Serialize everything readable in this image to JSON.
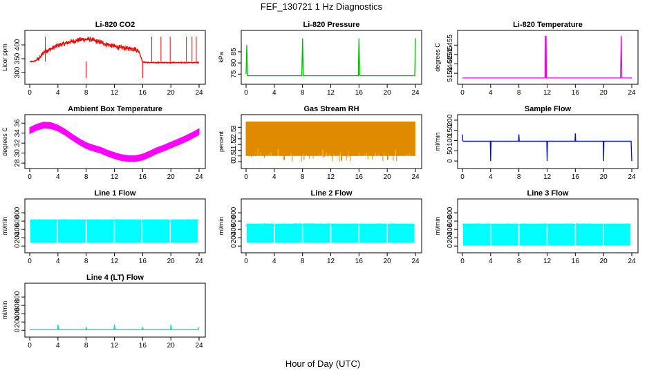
{
  "figure": {
    "title": "FEF_130721  1 Hz Diagnostics",
    "xlabel": "Hour of Day (UTC)"
  },
  "chart_data": [
    {
      "type": "line",
      "title": "Li-820 CO2",
      "ylabel": "Licor ppm",
      "color": "#ff0000",
      "xlim": [
        0,
        24
      ],
      "xticks": [
        0,
        4,
        8,
        12,
        16,
        20,
        24
      ],
      "ylim": [
        270,
        440
      ],
      "yticks": [
        300,
        350,
        400
      ],
      "x": [
        0,
        0.5,
        1,
        1.5,
        2,
        2.5,
        3,
        3.5,
        4,
        4.5,
        5,
        5.5,
        6,
        6.5,
        7,
        7.5,
        8,
        8.5,
        9,
        9.5,
        10,
        10.5,
        11,
        11.5,
        12,
        12.5,
        13,
        13.5,
        14,
        14.5,
        15,
        15.5,
        16,
        16.5,
        17,
        18,
        19,
        20,
        21,
        22,
        23,
        24
      ],
      "y": [
        340,
        340,
        345,
        355,
        375,
        380,
        385,
        392,
        398,
        402,
        405,
        410,
        412,
        415,
        418,
        420,
        420,
        420,
        418,
        412,
        410,
        405,
        402,
        398,
        395,
        392,
        390,
        388,
        387,
        386,
        385,
        375,
        338,
        337,
        336,
        336,
        336,
        336,
        336,
        336,
        336,
        336
      ]
    },
    {
      "type": "line",
      "title": "Li-820 Pressure",
      "ylabel": "kPa",
      "color": "#00bb00",
      "xlim": [
        0,
        24
      ],
      "xticks": [
        0,
        4,
        8,
        12,
        16,
        20,
        24
      ],
      "ylim": [
        72,
        93
      ],
      "yticks": [
        75,
        80,
        85
      ],
      "x": [
        0,
        0.1,
        0.2,
        1,
        4,
        7.9,
        8,
        8.1,
        12,
        15.9,
        16,
        16.1,
        20,
        23.9,
        24
      ],
      "y": [
        75,
        88,
        74.3,
        74.3,
        74.3,
        74.3,
        91,
        74.3,
        74.3,
        74.3,
        91,
        74.3,
        74.3,
        74.3,
        91
      ]
    },
    {
      "type": "line",
      "title": "Li-820 Temperature",
      "ylabel": "degrees C",
      "color": "#ee00ee",
      "xlim": [
        0,
        24
      ],
      "xticks": [
        0,
        4,
        8,
        12,
        16,
        20,
        24
      ],
      "ylim": [
        51.436,
        51.461
      ],
      "yticks": [
        51.44,
        51.445,
        51.45,
        51.455
      ],
      "x": [
        0,
        11.7,
        11.75,
        11.8,
        11.85,
        11.9,
        12,
        22.4,
        22.5,
        22.6,
        24
      ],
      "y": [
        51.4375,
        51.4375,
        51.46,
        51.4375,
        51.46,
        51.4375,
        51.4375,
        51.4375,
        51.46,
        51.4375,
        51.4375
      ]
    },
    {
      "type": "line",
      "title": "Ambient Box Temperature",
      "ylabel": "degrees C",
      "color": "#ff00ff",
      "xlim": [
        0,
        24
      ],
      "xticks": [
        0,
        4,
        8,
        12,
        16,
        20,
        24
      ],
      "ylim": [
        27.6,
        37
      ],
      "yticks": [
        28,
        30,
        32,
        34,
        36
      ],
      "x": [
        0,
        1,
        2,
        3,
        4,
        5,
        6,
        7,
        8,
        9,
        10,
        11,
        12,
        13,
        14,
        15,
        16,
        17,
        18,
        19,
        20,
        21,
        22,
        23,
        24
      ],
      "y": [
        34.5,
        35.2,
        35.6,
        35.5,
        35.0,
        34.2,
        33.2,
        32.3,
        31.5,
        31.0,
        30.6,
        30.0,
        29.5,
        29.1,
        28.9,
        28.9,
        29.2,
        29.8,
        30.5,
        31.0,
        31.6,
        32.2,
        32.8,
        33.5,
        34.3
      ],
      "band": 0.6
    },
    {
      "type": "line",
      "title": "Gas Stream RH",
      "ylabel": "percent",
      "color": "#ffa500",
      "xlim": [
        0,
        24
      ],
      "xticks": [
        0,
        4,
        8,
        12,
        16,
        20,
        24
      ],
      "ylim": [
        -0.3,
        3.8
      ],
      "yticks": [
        0,
        0.5,
        1,
        1.5,
        2,
        2.5,
        3
      ],
      "top": 3.5,
      "bottom": 0.5
    },
    {
      "type": "line",
      "title": "Sample Flow",
      "ylabel": "ml/min",
      "color": "#0000ff",
      "xlim": [
        0,
        24
      ],
      "xticks": [
        0,
        4,
        8,
        12,
        16,
        20,
        24
      ],
      "ylim": [
        -20,
        210
      ],
      "yticks": [
        0,
        50,
        100,
        150,
        200
      ],
      "x": [
        0,
        0.05,
        0.1,
        3.95,
        4,
        4.05,
        7.95,
        8,
        8.05,
        11.95,
        12,
        12.05,
        15.95,
        16,
        16.05,
        19.95,
        20,
        20.05,
        23.9,
        24
      ],
      "y": [
        130,
        100,
        97,
        97,
        0,
        97,
        97,
        130,
        97,
        97,
        0,
        97,
        97,
        135,
        97,
        97,
        0,
        97,
        97,
        0
      ]
    },
    {
      "type": "area",
      "title": "Line 1 Flow",
      "ylabel": "ml/min",
      "color": "#00ffff",
      "xlim": [
        0,
        24
      ],
      "xticks": [
        0,
        4,
        8,
        12,
        16,
        20,
        24
      ],
      "ylim": [
        -80,
        1050
      ],
      "yticks": [
        0,
        200,
        400,
        600,
        800
      ],
      "top": 640,
      "bottom": 80,
      "gaps": [
        0,
        3.9,
        8,
        12,
        15.9,
        19.9,
        23.9
      ]
    },
    {
      "type": "area",
      "title": "Line 2 Flow",
      "ylabel": "ml/min",
      "color": "#00ffff",
      "xlim": [
        0,
        24
      ],
      "xticks": [
        0,
        4,
        8,
        12,
        16,
        20,
        24
      ],
      "ylim": [
        -80,
        1050
      ],
      "yticks": [
        0,
        200,
        400,
        600,
        800
      ],
      "top": 540,
      "bottom": 80,
      "gaps": [
        0,
        4,
        8,
        12,
        16,
        20,
        23.9
      ]
    },
    {
      "type": "area",
      "title": "Line 3 Flow",
      "ylabel": "ml/min",
      "color": "#00ffff",
      "xlim": [
        0,
        24
      ],
      "xticks": [
        0,
        4,
        8,
        12,
        16,
        20,
        24
      ],
      "ylim": [
        -80,
        1050
      ],
      "yticks": [
        0,
        200,
        400,
        600,
        800
      ],
      "top": 540,
      "bottom": 10,
      "gaps": [
        0,
        4,
        8,
        12,
        16,
        20,
        23.9
      ]
    },
    {
      "type": "line",
      "title": "Line 4 (LT) Flow",
      "ylabel": "ml/min",
      "color": "#00dddd",
      "xlim": [
        0,
        24
      ],
      "xticks": [
        0,
        4,
        8,
        12,
        16,
        20,
        24
      ],
      "ylim": [
        -80,
        1050
      ],
      "yticks": [
        0,
        200,
        400,
        600,
        800
      ],
      "x": [
        0,
        3.95,
        4,
        4.1,
        7.95,
        8,
        8.1,
        11.95,
        12,
        12.1,
        15.95,
        16,
        16.1,
        19.95,
        20,
        20.1,
        23.9,
        24
      ],
      "y": [
        15,
        15,
        140,
        15,
        15,
        80,
        15,
        15,
        140,
        15,
        15,
        80,
        15,
        15,
        140,
        15,
        15,
        80
      ]
    }
  ]
}
